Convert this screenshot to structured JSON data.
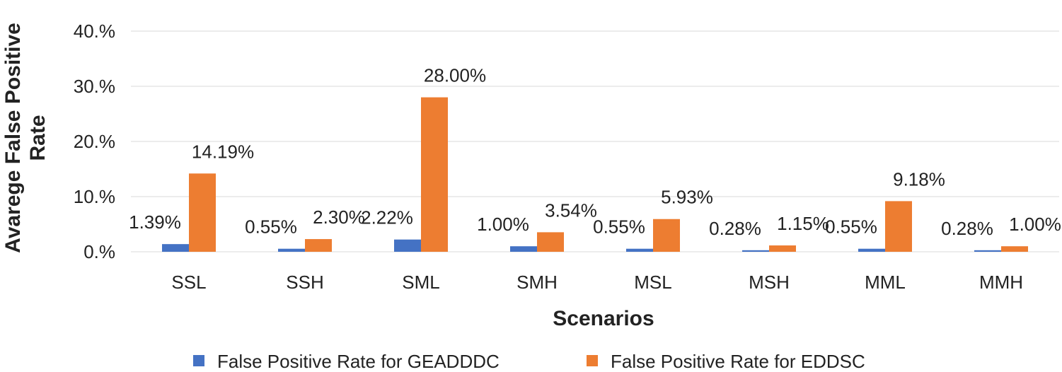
{
  "chart_data": {
    "type": "bar",
    "title": "",
    "xlabel": "Scenarios",
    "ylabel_lines": [
      "Avarege False Positive",
      "Rate"
    ],
    "categories": [
      "SSL",
      "SSH",
      "SML",
      "SMH",
      "MSL",
      "MSH",
      "MML",
      "MMH"
    ],
    "series": [
      {
        "name": "False Positive Rate for GEADDDC",
        "color": "#4472c4",
        "values": [
          1.39,
          0.55,
          2.22,
          1.0,
          0.55,
          0.28,
          0.55,
          0.28
        ],
        "labels": [
          "1.39%",
          "0.55%",
          "2.22%",
          "1.00%",
          "0.55%",
          "0.28%",
          "0.55%",
          "0.28%"
        ]
      },
      {
        "name": "False Positive Rate for EDDSC",
        "color": "#ed7d31",
        "values": [
          14.19,
          2.3,
          28.0,
          3.54,
          5.93,
          1.15,
          9.18,
          1.0
        ],
        "labels": [
          "14.19%",
          "2.30%",
          "28.00%",
          "3.54%",
          "5.93%",
          "1.15%",
          "9.18%",
          "1.00%"
        ]
      }
    ],
    "ylim": [
      0,
      40
    ],
    "yticks": [
      0,
      10,
      20,
      30,
      40
    ],
    "ytick_labels": [
      "0.%",
      "10.%",
      "20.%",
      "30.%",
      "40.%"
    ],
    "grid": true,
    "gridline_color": "#d9d9d9",
    "legend_position": "bottom"
  }
}
